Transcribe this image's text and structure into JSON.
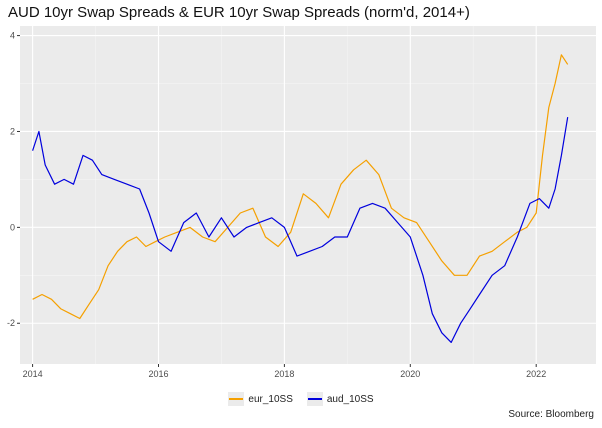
{
  "title": "AUD 10yr Swap Spreads & EUR 10yr Swap Spreads (norm'd, 2014+)",
  "source": "Source: Bloomberg",
  "chart_data": {
    "type": "line",
    "title": "AUD 10yr Swap Spreads & EUR 10yr Swap Spreads (norm'd, 2014+)",
    "xlabel": "",
    "ylabel": "",
    "xlim": [
      2013.8,
      2022.95
    ],
    "ylim": [
      -2.85,
      4.2
    ],
    "x_ticks": [
      2014,
      2016,
      2018,
      2020,
      2022
    ],
    "y_ticks": [
      -2,
      0,
      2,
      4
    ],
    "grid": true,
    "legend_position": "bottom",
    "series": [
      {
        "name": "eur_10SS",
        "color": "#f5a000",
        "x": [
          2014.0,
          2014.15,
          2014.3,
          2014.45,
          2014.6,
          2014.75,
          2014.9,
          2015.05,
          2015.2,
          2015.35,
          2015.5,
          2015.65,
          2015.8,
          2015.95,
          2016.1,
          2016.3,
          2016.5,
          2016.7,
          2016.9,
          2017.1,
          2017.3,
          2017.5,
          2017.7,
          2017.9,
          2018.1,
          2018.3,
          2018.5,
          2018.7,
          2018.9,
          2019.1,
          2019.3,
          2019.5,
          2019.7,
          2019.9,
          2020.1,
          2020.3,
          2020.5,
          2020.7,
          2020.9,
          2021.1,
          2021.3,
          2021.5,
          2021.7,
          2021.85,
          2022.0,
          2022.1,
          2022.2,
          2022.3,
          2022.4,
          2022.5
        ],
        "values": [
          -1.5,
          -1.4,
          -1.5,
          -1.7,
          -1.8,
          -1.9,
          -1.6,
          -1.3,
          -0.8,
          -0.5,
          -0.3,
          -0.2,
          -0.4,
          -0.3,
          -0.2,
          -0.1,
          0.0,
          -0.2,
          -0.3,
          0.0,
          0.3,
          0.4,
          -0.2,
          -0.4,
          -0.1,
          0.7,
          0.5,
          0.2,
          0.9,
          1.2,
          1.4,
          1.1,
          0.4,
          0.2,
          0.1,
          -0.3,
          -0.7,
          -1.0,
          -1.0,
          -0.6,
          -0.5,
          -0.3,
          -0.1,
          0.0,
          0.3,
          1.5,
          2.5,
          3.0,
          3.6,
          3.4
        ]
      },
      {
        "name": "aud_10SS",
        "color": "#0000dd",
        "x": [
          2014.0,
          2014.1,
          2014.2,
          2014.35,
          2014.5,
          2014.65,
          2014.8,
          2014.95,
          2015.1,
          2015.3,
          2015.5,
          2015.7,
          2015.85,
          2016.0,
          2016.2,
          2016.4,
          2016.6,
          2016.8,
          2017.0,
          2017.2,
          2017.4,
          2017.6,
          2017.8,
          2018.0,
          2018.2,
          2018.4,
          2018.6,
          2018.8,
          2019.0,
          2019.2,
          2019.4,
          2019.6,
          2019.8,
          2020.0,
          2020.2,
          2020.35,
          2020.5,
          2020.65,
          2020.8,
          2020.95,
          2021.1,
          2021.3,
          2021.5,
          2021.7,
          2021.9,
          2022.05,
          2022.2,
          2022.3,
          2022.4,
          2022.5
        ],
        "values": [
          1.6,
          2.0,
          1.3,
          0.9,
          1.0,
          0.9,
          1.5,
          1.4,
          1.1,
          1.0,
          0.9,
          0.8,
          0.3,
          -0.3,
          -0.5,
          0.1,
          0.3,
          -0.2,
          0.2,
          -0.2,
          0.0,
          0.1,
          0.2,
          0.0,
          -0.6,
          -0.5,
          -0.4,
          -0.2,
          -0.2,
          0.4,
          0.5,
          0.4,
          0.1,
          -0.2,
          -1.0,
          -1.8,
          -2.2,
          -2.4,
          -2.0,
          -1.7,
          -1.4,
          -1.0,
          -0.8,
          -0.2,
          0.5,
          0.6,
          0.4,
          0.8,
          1.5,
          2.3
        ]
      }
    ]
  }
}
